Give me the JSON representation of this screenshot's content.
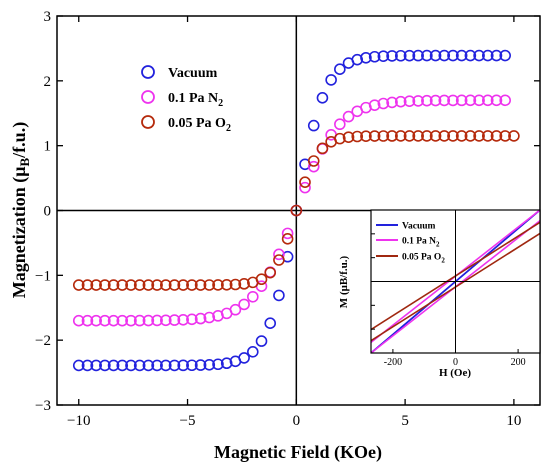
{
  "chart_data": [
    {
      "type": "scatter",
      "xlabel": "Magnetic Field (KOe)",
      "ylabel_main": "Magnetization (",
      "ylabel_mu": "μ",
      "ylabel_sub": "B",
      "ylabel_tail": "/f.u.)",
      "xlim": [
        -11,
        11.2
      ],
      "ylim": [
        -3,
        3
      ],
      "x_ticks": [
        -10,
        -5,
        0,
        5,
        10
      ],
      "x_tick_labels": [
        "−10",
        "−5",
        "0",
        "5",
        "10"
      ],
      "y_ticks": [
        -3,
        -2,
        -1,
        0,
        1,
        2,
        3
      ],
      "y_tick_labels": [
        "−3",
        "−2",
        "−1",
        "0",
        "1",
        "2",
        "3"
      ],
      "legend_position": "top-left",
      "marker": "open-circle",
      "grid": false,
      "series": [
        {
          "label_text": "Vacuum",
          "label_sub": "",
          "color": "#2222dd",
          "Ms": 2.39,
          "H0": 1.3,
          "x_range": [
            -10,
            9.6
          ],
          "step": 0.4
        },
        {
          "label_text": "0.1 Pa N",
          "label_sub": "2",
          "color": "#ee33ee",
          "Ms": 1.7,
          "H0": 1.9,
          "x_range": [
            -10,
            9.8
          ],
          "step": 0.4
        },
        {
          "label_text": "0.05 Pa O",
          "label_sub": "2",
          "color": "#b52a0c",
          "Ms": 1.15,
          "H0": 1.0,
          "x_range": [
            -10,
            10.2
          ],
          "step": 0.4
        }
      ]
    },
    {
      "type": "line",
      "inset": true,
      "xlabel": "H (Oe)",
      "ylabel_main": "M (μB/f.u.)",
      "xlim": [
        -270,
        270
      ],
      "ylim": [
        -0.45,
        0.45
      ],
      "x_ticks": [
        -200,
        0,
        200
      ],
      "x_tick_labels": [
        "-200",
        "0",
        "200"
      ],
      "y_ticks": [
        -0.3,
        -0.15,
        0,
        0.15,
        0.3
      ],
      "legend_position": "top-left",
      "series": [
        {
          "label_text": "Vacuum",
          "label_sub": "",
          "color": "#2222dd",
          "width": 1.6,
          "slope": 0.00235,
          "Hc": 45
        },
        {
          "label_text": "0.1 Pa N",
          "label_sub": "2",
          "color": "#ee33ee",
          "width": 1.6,
          "slope": 0.00165,
          "Hc": 38
        },
        {
          "label_text": "0.05 Pa O",
          "label_sub": "2",
          "color": "#a02810",
          "width": 1.6,
          "slope": 0.00125,
          "Hc": 28
        }
      ]
    }
  ]
}
